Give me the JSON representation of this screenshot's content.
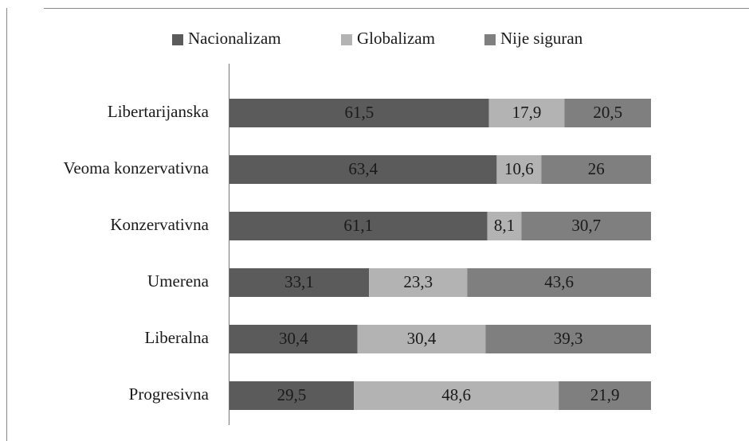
{
  "chart_data": {
    "type": "stacked_bar_horizontal",
    "categories": [
      "Libertarijanska",
      "Veoma konzervativna",
      "Konzervativna",
      "Umerena",
      "Liberalna",
      "Progresivna"
    ],
    "legend": "top",
    "series": [
      {
        "name": "Nacionalizam",
        "color": "#5b5b5b",
        "values": [
          61.5,
          63.4,
          61.1,
          33.1,
          30.4,
          29.5
        ],
        "value_labels": [
          "61,5",
          "63,4",
          "61,1",
          "33,1",
          "30,4",
          "29,5"
        ]
      },
      {
        "name": "Globalizam",
        "color": "#b3b3b3",
        "values": [
          17.9,
          10.6,
          8.1,
          23.3,
          30.4,
          48.6
        ],
        "value_labels": [
          "17,9",
          "10,6",
          "8,1",
          "23,3",
          "30,4",
          "48,6"
        ]
      },
      {
        "name": "Nije siguran",
        "color": "#7f7f7f",
        "values": [
          20.5,
          26,
          30.7,
          43.6,
          39.3,
          21.9
        ],
        "value_labels": [
          "20,5",
          "26",
          "30,7",
          "43,6",
          "39,3",
          "21,9"
        ]
      }
    ]
  }
}
